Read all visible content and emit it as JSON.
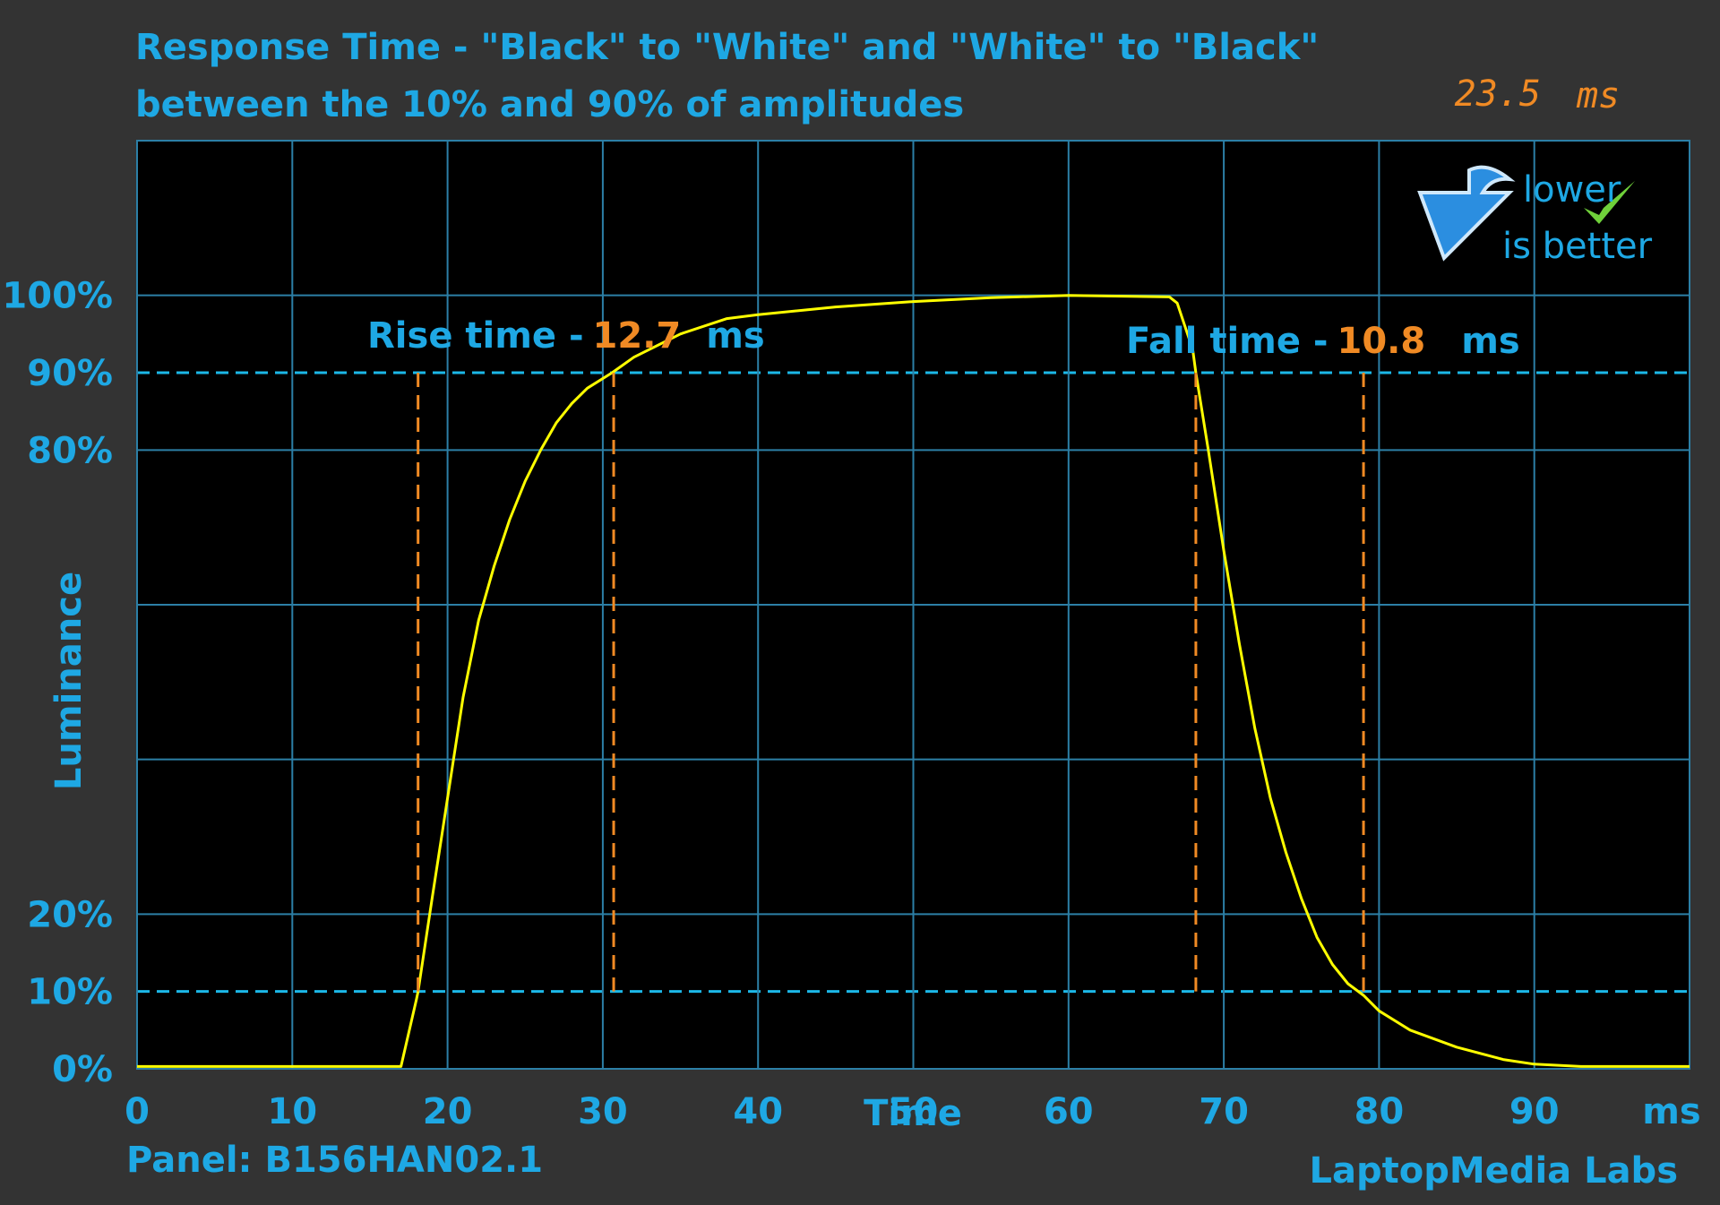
{
  "chart_data": {
    "type": "line",
    "title": "Response Time - \"Black\" to \"White\" and \"White\" to \"Black\"",
    "subtitle": "between the 10% and 90% of amplitudes",
    "y_label": "Luminance",
    "x_label": "Time",
    "x_unit_label": "ms",
    "xlim": [
      0,
      100
    ],
    "xticks": [
      0,
      10,
      20,
      30,
      40,
      50,
      60,
      70,
      80,
      90
    ],
    "ylim": [
      0,
      120
    ],
    "yticks": [
      {
        "value": 0,
        "label": "0%"
      },
      {
        "value": 10,
        "label": "10%"
      },
      {
        "value": 20,
        "label": "20%"
      },
      {
        "value": 80,
        "label": "80%"
      },
      {
        "value": 90,
        "label": "90%"
      },
      {
        "value": 100,
        "label": "100%"
      }
    ],
    "ygrid": [
      0,
      20,
      40,
      60,
      80,
      100,
      120
    ],
    "thresholds": [
      10,
      90
    ],
    "grid": true,
    "color": "#ffff00",
    "x": [
      0,
      5,
      10,
      15,
      17,
      18,
      18.1,
      19,
      20,
      21,
      22,
      23,
      24,
      25,
      26,
      27,
      28,
      29,
      30.6,
      32,
      35,
      38,
      40,
      45,
      50,
      55,
      60,
      66.5,
      67,
      68,
      68.2,
      69,
      70,
      71,
      72,
      73,
      74,
      75,
      76,
      77,
      78,
      79,
      80,
      82,
      85,
      88,
      90,
      93,
      100
    ],
    "values": [
      0.3,
      0.3,
      0.3,
      0.3,
      0.3,
      9,
      10,
      22,
      35,
      48,
      58,
      65,
      71,
      76,
      80,
      83.5,
      86,
      88,
      90,
      92,
      95,
      97,
      97.5,
      98.5,
      99.2,
      99.7,
      100,
      99.8,
      99,
      93,
      90,
      80,
      67,
      55,
      44,
      35,
      28,
      22,
      17,
      13.5,
      11,
      9.5,
      7.5,
      5,
      2.8,
      1.2,
      0.6,
      0.3,
      0.3
    ],
    "annotations": {
      "rise": {
        "label": "Rise time -",
        "value": 12.7,
        "unit": "ms",
        "x": [
          18.1,
          30.7
        ]
      },
      "fall": {
        "label": "Fall time -",
        "value": 10.8,
        "unit": "ms",
        "x": [
          68.2,
          79.0
        ]
      }
    },
    "readout": {
      "value": 23.5,
      "unit": "ms"
    },
    "badge": {
      "line1": "lower",
      "line2": "is better"
    },
    "footer_left": "Panel: B156HAN02.1",
    "footer_right": "LaptopMedia Labs"
  }
}
